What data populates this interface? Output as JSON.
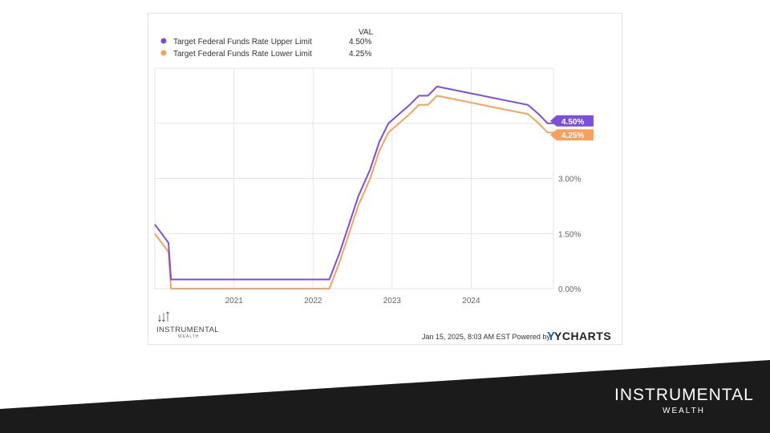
{
  "chart_data": {
    "type": "line",
    "legend_header": "VAL",
    "series": [
      {
        "name": "Target Federal Funds Rate Upper Limit",
        "last_value": "4.50%",
        "color": "#7B4FD8",
        "points": [
          [
            "2020-01-01",
            1.75
          ],
          [
            "2020-03-04",
            1.25
          ],
          [
            "2020-03-16",
            0.25
          ],
          [
            "2022-03-17",
            0.25
          ],
          [
            "2022-05-05",
            1.0
          ],
          [
            "2022-06-16",
            1.75
          ],
          [
            "2022-07-28",
            2.5
          ],
          [
            "2022-09-22",
            3.25
          ],
          [
            "2022-11-03",
            4.0
          ],
          [
            "2022-12-15",
            4.5
          ],
          [
            "2023-02-02",
            4.75
          ],
          [
            "2023-03-23",
            5.0
          ],
          [
            "2023-05-04",
            5.25
          ],
          [
            "2023-06-15",
            5.25
          ],
          [
            "2023-07-27",
            5.5
          ],
          [
            "2024-09-19",
            5.0
          ],
          [
            "2024-11-08",
            4.75
          ],
          [
            "2024-12-19",
            4.5
          ],
          [
            "2025-01-15",
            4.5
          ]
        ]
      },
      {
        "name": "Target Federal Funds Rate Lower Limit",
        "last_value": "4.25%",
        "color": "#F7A25C",
        "points": [
          [
            "2020-01-01",
            1.5
          ],
          [
            "2020-03-04",
            1.0
          ],
          [
            "2020-03-16",
            0.0
          ],
          [
            "2022-03-17",
            0.0
          ],
          [
            "2022-05-05",
            0.75
          ],
          [
            "2022-06-16",
            1.5
          ],
          [
            "2022-07-28",
            2.25
          ],
          [
            "2022-09-22",
            3.0
          ],
          [
            "2022-11-03",
            3.75
          ],
          [
            "2022-12-15",
            4.25
          ],
          [
            "2023-02-02",
            4.5
          ],
          [
            "2023-03-23",
            4.75
          ],
          [
            "2023-05-04",
            5.0
          ],
          [
            "2023-06-15",
            5.0
          ],
          [
            "2023-07-27",
            5.25
          ],
          [
            "2024-09-19",
            4.75
          ],
          [
            "2024-11-08",
            4.5
          ],
          [
            "2024-12-19",
            4.25
          ],
          [
            "2025-01-15",
            4.25
          ]
        ]
      }
    ],
    "x_tick_labels": [
      "2021",
      "2022",
      "2023",
      "2024"
    ],
    "y_tick_labels": [
      "0.00%",
      "1.50%",
      "3.00%"
    ],
    "ylim": [
      0,
      6
    ],
    "xlim": [
      "2020-01-01",
      "2025-01-15"
    ],
    "grid": true,
    "legend_position": "top-left"
  },
  "footer": {
    "timestamp_text": "Jan 15, 2025, 8:03 AM EST Powered by",
    "ycharts_logo": "YCHARTS",
    "watermark_name": "INSTRUMENTAL",
    "watermark_sub": "WEALTH"
  },
  "brand": {
    "name": "INSTRUMENTAL",
    "sub": "WEALTH"
  },
  "colors": {
    "band": "#1b1b1b",
    "upper": "#7B4FD8",
    "lower": "#F7A25C"
  }
}
